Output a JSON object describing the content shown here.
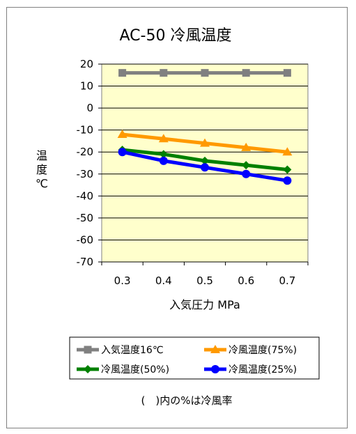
{
  "chart_data": {
    "type": "line",
    "title": "AC-50 冷風温度",
    "xlabel": "入気圧力 MPa",
    "ylabel_chars": [
      "温",
      "度",
      "℃"
    ],
    "x": [
      "0.3",
      "0.4",
      "0.5",
      "0.6",
      "0.7"
    ],
    "ylim": [
      -70,
      20
    ],
    "yticks": [
      20,
      10,
      0,
      -10,
      -20,
      -30,
      -40,
      -50,
      -60,
      -70
    ],
    "grid": true,
    "legend_position": "bottom",
    "series": [
      {
        "name": "入気温度16℃",
        "values": [
          16,
          16,
          16,
          16,
          16
        ],
        "color": "#808080",
        "marker": "square"
      },
      {
        "name": "冷風温度(75%)",
        "values": [
          -12,
          -14,
          -16,
          -18,
          -20
        ],
        "color": "#ff9900",
        "marker": "triangle"
      },
      {
        "name": "冷風温度(50%)",
        "values": [
          -19,
          -21,
          -24,
          -26,
          -28
        ],
        "color": "#008000",
        "marker": "diamond"
      },
      {
        "name": "冷風温度(25%)",
        "values": [
          -20,
          -24,
          -27,
          -30,
          -33
        ],
        "color": "#0000ff",
        "marker": "circle"
      }
    ],
    "note": "(　)内の%は冷風率",
    "plot_background": "#ffffcc"
  }
}
